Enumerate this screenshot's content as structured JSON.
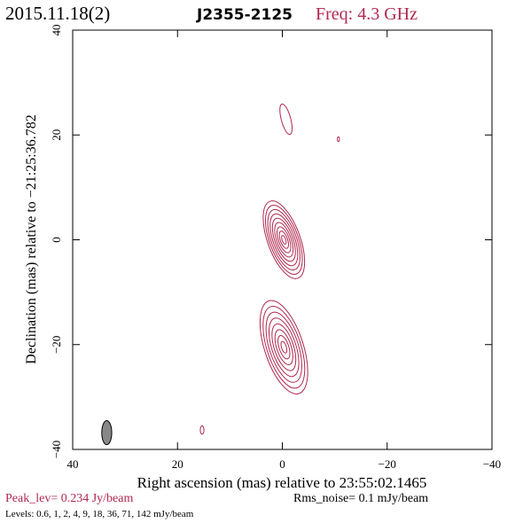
{
  "header": {
    "date": "2015.11.18(2)",
    "source": "J2355-2125",
    "freq": "Freq: 4.3 GHz"
  },
  "footer": {
    "peak": "Peak_lev=  0.234 Jy/beam",
    "rms": "Rms_noise=  0.1 mJy/beam",
    "levels": "Levels: 0.6,   1,   2,   4,   9,  18,  36,  71, 142 mJy/beam"
  },
  "colors": {
    "contour": "#b0284f",
    "axes": "#000000",
    "beam": "#888888"
  },
  "chart_data": {
    "type": "contour",
    "xlabel": "Right ascension (mas) relative to 23:55:02.1465",
    "ylabel": "Declination (mas) relative to −21:25:36.782",
    "xlim": [
      40,
      -40
    ],
    "ylim": [
      -40,
      40
    ],
    "xticks": [
      40,
      20,
      0,
      -20,
      -40
    ],
    "xtick_labels": [
      "40",
      "20",
      "0",
      "−20",
      "−40"
    ],
    "yticks": [
      40,
      20,
      0,
      -20,
      -40
    ],
    "ytick_labels": [
      "40",
      "20",
      "0",
      "−20",
      "−40"
    ],
    "levels_mjy": [
      0.6,
      1,
      2,
      4,
      9,
      18,
      36,
      71,
      142
    ],
    "peak_jy_per_beam": 0.234,
    "rms_mjy_per_beam": 0.1,
    "components": [
      {
        "x": -0.3,
        "y": 0.0,
        "major": 7.8,
        "minor": 3.1,
        "pa": 20,
        "nlev": 9
      },
      {
        "x": -0.3,
        "y": -20.5,
        "major": 9.3,
        "minor": 3.7,
        "pa": 18,
        "nlev": 8
      }
    ],
    "small_contours": [
      {
        "x": -0.7,
        "y": 23.0,
        "major": 3.0,
        "minor": 0.9,
        "pa": 15
      },
      {
        "x": -10.7,
        "y": 19.2,
        "major": 0.45,
        "minor": 0.2,
        "pa": 0
      },
      {
        "x": 15.3,
        "y": -36.3,
        "major": 0.8,
        "minor": 0.35,
        "pa": 0
      }
    ],
    "beam": {
      "x": 33.5,
      "y": -36.8,
      "major": 2.3,
      "minor": 0.95,
      "pa": 0
    }
  }
}
